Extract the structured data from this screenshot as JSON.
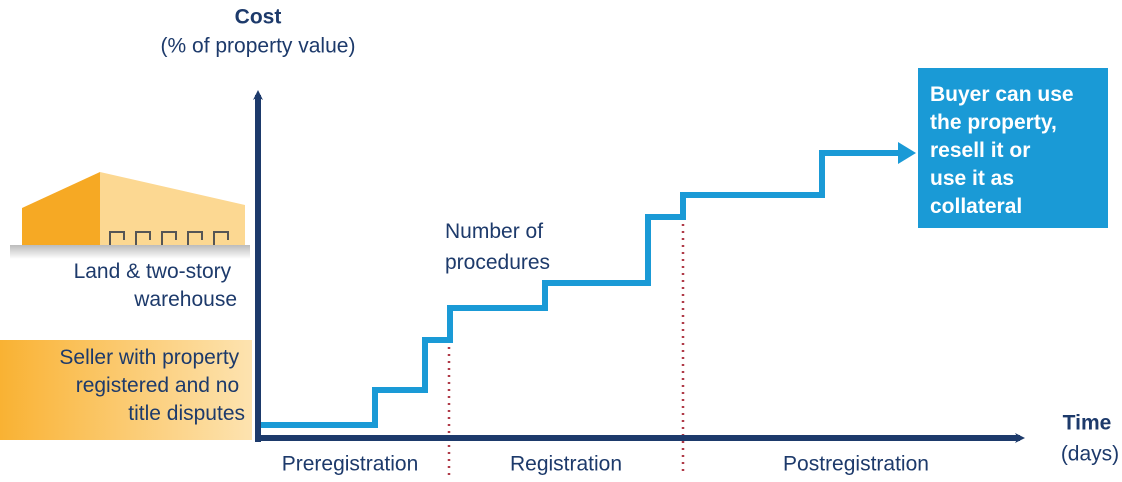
{
  "y_axis": {
    "title": "Cost",
    "subtitle": "(% of property value)"
  },
  "x_axis": {
    "title": "Time",
    "subtitle": "(days)"
  },
  "property": {
    "lines": [
      "Land & two-story",
      "warehouse"
    ]
  },
  "seller": {
    "lines": [
      "Seller with property",
      "registered and no",
      "title disputes"
    ]
  },
  "steps_label": {
    "lines": [
      "Number of",
      "procedures"
    ]
  },
  "outcome": {
    "lines": [
      "Buyer can use",
      "the property,",
      "resell it or",
      "use it as",
      "collateral"
    ]
  },
  "phases": [
    "Preregistration",
    "Registration",
    "Postregistration"
  ]
}
